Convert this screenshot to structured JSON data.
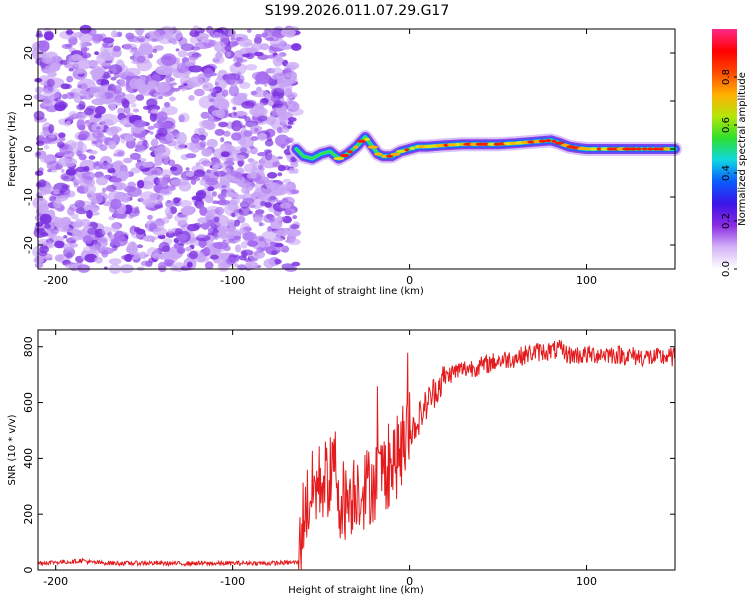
{
  "figure": {
    "title": "S199.2026.011.07.29.G17"
  },
  "colors": {
    "snr_line": "#e41a1c",
    "scatter": "#7b2fe0",
    "scatter_light": "#c9a6f5",
    "background": "#ffffff"
  },
  "chart_data": [
    {
      "type": "heatmap",
      "name": "spectrogram",
      "xlabel": "Height of straight line (km)",
      "ylabel": "Frequency (Hz)",
      "xlim": [
        -210,
        150
      ],
      "ylim": [
        -25,
        25
      ],
      "xticks": [
        -200,
        -100,
        0,
        100
      ],
      "yticks": [
        -20,
        -10,
        0,
        10,
        20
      ],
      "noise_region_x": [
        -210,
        -64
      ],
      "signal_trace": {
        "x": [
          -64,
          -60,
          -55,
          -50,
          -45,
          -40,
          -35,
          -30,
          -25,
          -22,
          -18,
          -15,
          -10,
          -5,
          0,
          5,
          10,
          20,
          30,
          40,
          50,
          60,
          70,
          80,
          85,
          90,
          95,
          100,
          110,
          120,
          130,
          140,
          150
        ],
        "freq": [
          0,
          -1.5,
          -2,
          -1,
          -0.5,
          -2,
          -1,
          0.5,
          2.5,
          1,
          -1,
          -1.5,
          -1.5,
          -0.5,
          0,
          0.5,
          0.5,
          0.8,
          1,
          1,
          1,
          1.2,
          1.5,
          1.8,
          1.2,
          0.5,
          0.2,
          0,
          0,
          0,
          0,
          0,
          0
        ]
      },
      "colorbar": {
        "label": "Normalized spectral amplitude",
        "range": [
          0,
          1
        ],
        "ticks": [
          "0.0",
          "0.2",
          "0.4",
          "0.6",
          "0.8"
        ],
        "tick_values": [
          0,
          0.2,
          0.4,
          0.6,
          0.8
        ],
        "colors": [
          "#ffffff",
          "#d4b3f7",
          "#8a2be2",
          "#3a14e8",
          "#0a5cff",
          "#10d8e0",
          "#2ddf2d",
          "#b4e60a",
          "#ffb000",
          "#ff4a00",
          "#ff0000",
          "#ff2a8a"
        ]
      }
    },
    {
      "type": "line",
      "name": "snr",
      "xlabel": "Height of straight line (km)",
      "ylabel": "SNR (10 * v/v)",
      "xlim": [
        -210,
        150
      ],
      "ylim": [
        0,
        860
      ],
      "xticks": [
        -200,
        -100,
        0,
        100
      ],
      "yticks": [
        0,
        200,
        400,
        600,
        800
      ],
      "series": [
        {
          "name": "SNR",
          "x": [
            -210,
            -200,
            -190,
            -185,
            -180,
            -170,
            -160,
            -150,
            -140,
            -130,
            -120,
            -110,
            -100,
            -90,
            -80,
            -70,
            -63,
            -60,
            -55,
            -50,
            -45,
            -42,
            -40,
            -35,
            -30,
            -25,
            -20,
            -15,
            -10,
            -5,
            0,
            5,
            10,
            15,
            20,
            25,
            30,
            40,
            50,
            60,
            70,
            80,
            85,
            90,
            100,
            110,
            120,
            130,
            140,
            145,
            150
          ],
          "y": [
            25,
            28,
            30,
            35,
            27,
            25,
            24,
            25,
            24,
            23,
            24,
            23,
            24,
            25,
            24,
            26,
            28,
            200,
            280,
            320,
            330,
            380,
            260,
            250,
            300,
            290,
            320,
            350,
            380,
            420,
            480,
            540,
            600,
            650,
            690,
            710,
            720,
            730,
            750,
            760,
            780,
            785,
            790,
            770,
            770,
            775,
            770,
            765,
            760,
            765,
            760
          ]
        }
      ]
    }
  ]
}
